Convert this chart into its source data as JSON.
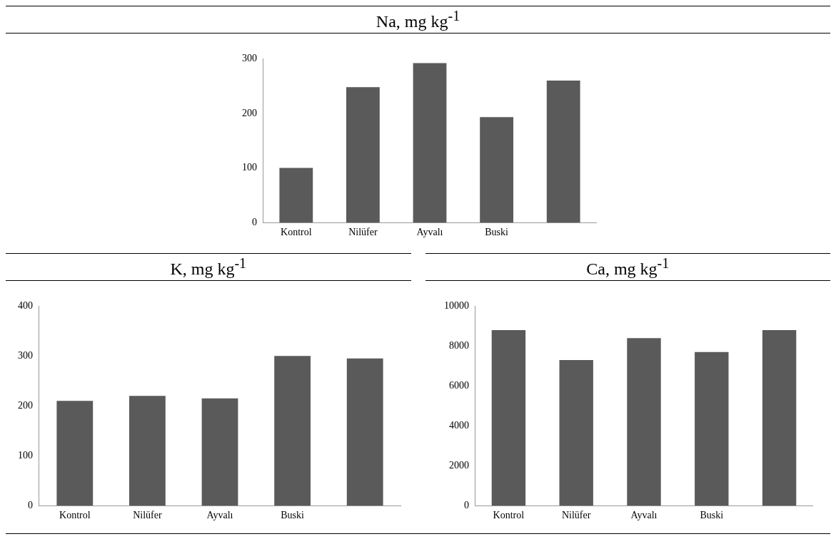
{
  "chart_data": [
    {
      "type": "bar",
      "title": "Na,  mg kg$^{-1}$",
      "categories": [
        "Kontrol",
        "Nilüfer",
        "Ayvalı",
        "Buski",
        null
      ],
      "values": [
        100,
        248,
        292,
        193,
        260
      ],
      "color": "#5a5a5a",
      "ylim": [
        0,
        300
      ],
      "yticks": [
        0,
        100,
        200,
        300
      ]
    },
    {
      "type": "bar",
      "title": "K,  mg kg$^{-1}$",
      "categories": [
        "Kontrol",
        "Nilüfer",
        "Ayvalı",
        "Buski",
        null
      ],
      "values": [
        210,
        220,
        215,
        300,
        295
      ],
      "color": "#5a5a5a",
      "ylim": [
        0,
        400
      ],
      "yticks": [
        0,
        100,
        200,
        300,
        400
      ]
    },
    {
      "type": "bar",
      "title": "Ca,  mg kg$^{-1}$",
      "categories": [
        "Kontrol",
        "Nilüfer",
        "Ayvalı",
        "Buski",
        null
      ],
      "values": [
        8800,
        7300,
        8400,
        7700,
        8800
      ],
      "color": "#5a5a5a",
      "ylim": [
        0,
        10000
      ],
      "yticks": [
        0,
        2000,
        4000,
        6000,
        8000,
        10000
      ]
    }
  ]
}
